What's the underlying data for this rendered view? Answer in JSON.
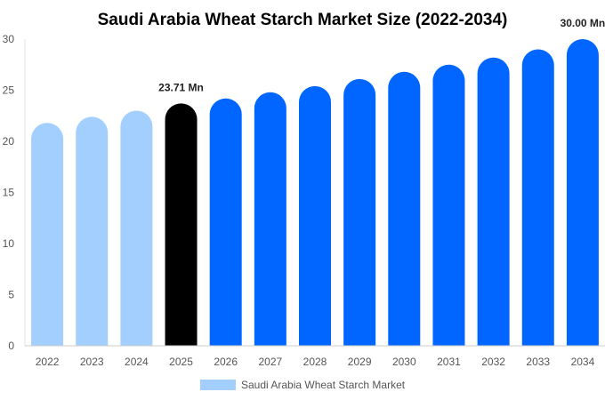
{
  "chart_data": {
    "type": "bar",
    "title": "Saudi Arabia Wheat Starch Market Size (2022-2034)",
    "xlabel": "",
    "ylabel": "",
    "ylim": [
      0,
      30
    ],
    "yticks": [
      0,
      5,
      10,
      15,
      20,
      25,
      30
    ],
    "grid": false,
    "legend_position": "bottom",
    "categories": [
      "2022",
      "2023",
      "2024",
      "2025",
      "2026",
      "2027",
      "2028",
      "2029",
      "2030",
      "2031",
      "2032",
      "2033",
      "2034"
    ],
    "series": [
      {
        "name": "Saudi Arabia Wheat Starch Market",
        "values": [
          21.8,
          22.4,
          23.0,
          23.71,
          24.2,
          24.8,
          25.4,
          26.1,
          26.8,
          27.5,
          28.2,
          29.0,
          30.0
        ]
      }
    ],
    "bar_colors": [
      "#a3cfff",
      "#a3cfff",
      "#a3cfff",
      "#000000",
      "#0066ff",
      "#0066ff",
      "#0066ff",
      "#0066ff",
      "#0066ff",
      "#0066ff",
      "#0066ff",
      "#0066ff",
      "#0066ff"
    ],
    "legend_color": "#a3cfff",
    "annotations": [
      {
        "category": "2025",
        "text": "23.71 Mn"
      },
      {
        "category": "2034",
        "text": "30.00 Mn"
      }
    ]
  }
}
